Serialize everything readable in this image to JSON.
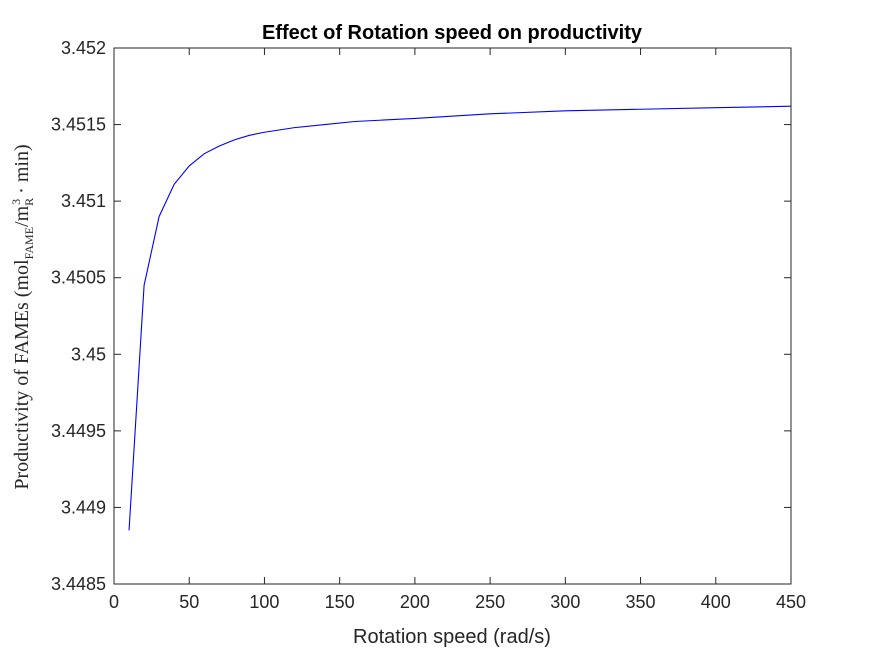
{
  "chart_data": {
    "type": "line",
    "title": "Effect of Rotation speed on productivity",
    "xlabel": "Rotation speed (rad/s)",
    "ylabel": {
      "prefix": "Productivity of FAMEs (mol",
      "sub1": "FAME",
      "mid": "/m",
      "sub2": "R",
      "sup": "3",
      "suffix": " · min)"
    },
    "xlim": [
      0,
      450
    ],
    "ylim": [
      3.4485,
      3.452
    ],
    "xticks": [
      0,
      50,
      100,
      150,
      200,
      250,
      300,
      350,
      400,
      450
    ],
    "xtick_labels": [
      "0",
      "50",
      "100",
      "150",
      "200",
      "250",
      "300",
      "350",
      "400",
      "450"
    ],
    "yticks": [
      3.4485,
      3.449,
      3.4495,
      3.45,
      3.4505,
      3.451,
      3.4515,
      3.452
    ],
    "ytick_labels": [
      "3.4485",
      "3.449",
      "3.4495",
      "3.45",
      "3.4505",
      "3.451",
      "3.4515",
      "3.452"
    ],
    "grid": false,
    "legend": "none",
    "series": [
      {
        "color": "#0000ff",
        "x": [
          10,
          20,
          30,
          40,
          50,
          60,
          70,
          80,
          90,
          100,
          120,
          140,
          160,
          180,
          200,
          250,
          300,
          350,
          400,
          450
        ],
        "y": [
          3.44885,
          3.45045,
          3.4509,
          3.45111,
          3.45123,
          3.45131,
          3.45136,
          3.4514,
          3.45143,
          3.45145,
          3.45148,
          3.4515,
          3.45152,
          3.45153,
          3.45154,
          3.45157,
          3.45159,
          3.4516,
          3.45161,
          3.45162
        ]
      }
    ]
  }
}
